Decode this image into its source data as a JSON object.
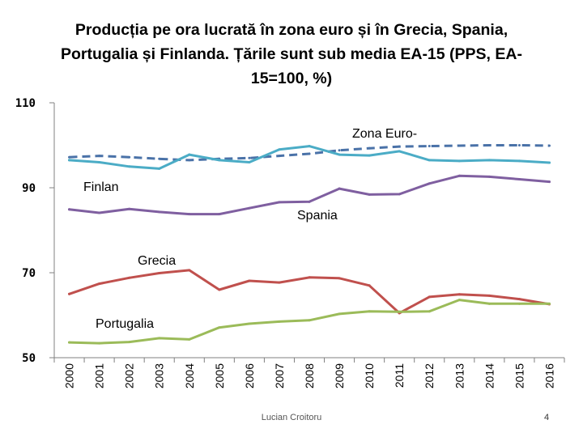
{
  "title": "Producția pe ora lucrată în zona euro și în Grecia, Spania, Portugalia și Finlanda. Țările sunt sub media EA-15  (PPS, EA-15=100, %)",
  "footer": {
    "author": "Lucian Croitoru",
    "page": "4"
  },
  "chart_data": {
    "type": "line",
    "title": "Producția pe ora lucrată în zona euro și în Grecia, Spania, Portugalia și Finlanda. Țările sunt sub media EA-15  (PPS, EA-15=100, %)",
    "xlabel": "",
    "ylabel": "",
    "ylim": [
      50,
      110
    ],
    "yticks": [
      "110",
      "90",
      "70",
      "50"
    ],
    "ytick_values": [
      110,
      90,
      70,
      50
    ],
    "grid": false,
    "categories": [
      "2000",
      "2001",
      "2002",
      "2003",
      "2004",
      "2005",
      "2006",
      "2007",
      "2008",
      "2009",
      "2010",
      "2011",
      "2012",
      "2013",
      "2014",
      "2015",
      "2016"
    ],
    "series": [
      {
        "name": "Zona Euro-",
        "color": "#4a72a8",
        "dashed": true,
        "values": [
          97.2,
          97.5,
          97.2,
          96.8,
          96.5,
          96.8,
          97.0,
          97.5,
          98.0,
          98.8,
          99.3,
          99.7,
          99.8,
          99.9,
          100.0,
          100.0,
          99.9
        ]
      },
      {
        "name": "Finlan",
        "color": "#4bacc6",
        "dashed": false,
        "values": [
          96.5,
          96.0,
          95.0,
          94.5,
          97.8,
          96.5,
          96.0,
          99.0,
          99.8,
          97.8,
          97.6,
          98.6,
          96.5,
          96.3,
          96.5,
          96.3,
          95.9
        ]
      },
      {
        "name": "Spania",
        "color": "#7f5fa0",
        "dashed": false,
        "values": [
          84.9,
          84.1,
          85.0,
          84.3,
          83.8,
          83.8,
          85.2,
          86.6,
          86.7,
          89.8,
          88.4,
          88.5,
          91.0,
          92.8,
          92.6,
          92.0,
          91.4
        ]
      },
      {
        "name": "Grecia",
        "color": "#c0504d",
        "dashed": false,
        "values": [
          65.0,
          67.4,
          68.8,
          69.9,
          70.6,
          66.0,
          68.1,
          67.7,
          68.9,
          68.7,
          67.0,
          60.5,
          64.3,
          64.9,
          64.6,
          63.8,
          62.6
        ]
      },
      {
        "name": "Portugalia",
        "color": "#9bbb59",
        "dashed": false,
        "values": [
          53.6,
          53.4,
          53.7,
          54.6,
          54.3,
          57.1,
          58.0,
          58.5,
          58.8,
          60.3,
          60.9,
          60.8,
          60.9,
          63.6,
          62.7,
          62.7,
          62.7
        ]
      }
    ]
  }
}
